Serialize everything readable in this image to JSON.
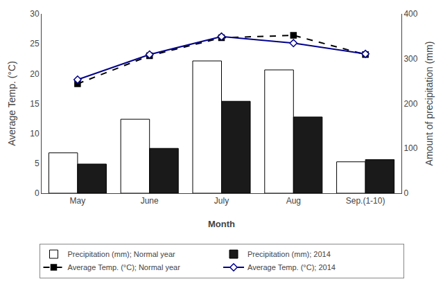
{
  "chart_data": {
    "type": "bar",
    "categories": [
      "May",
      "June",
      "July",
      "Aug",
      "Sep.(1-10)"
    ],
    "xlabel": "Month",
    "ylabel": "Average Temp. (°C)",
    "y2label": "Amount of precipitation (mm)",
    "ylim": [
      0.0,
      30.0
    ],
    "yticks": [
      0,
      5,
      10,
      15,
      20,
      25,
      30
    ],
    "y2lim": [
      0.0,
      400.0
    ],
    "y2ticks": [
      0,
      100,
      200,
      300,
      400
    ],
    "grid": false,
    "legend": "bottom",
    "series": [
      {
        "name": "Precipitation (mm); Normal year",
        "type": "bar",
        "axis": "y2",
        "color": "#ffffff",
        "values": [
          90,
          165,
          295,
          275,
          70
        ]
      },
      {
        "name": "Precipitation (mm); 2014",
        "type": "bar",
        "axis": "y2",
        "color": "#1a1a1a",
        "values": [
          65,
          100,
          205,
          170,
          75
        ]
      },
      {
        "name": "Average Temp. (°C); Normal year",
        "type": "line",
        "axis": "y",
        "color": "#000000",
        "line_style": "dashed",
        "marker": "square",
        "values": [
          18.3,
          23.0,
          26.0,
          26.4,
          23.2
        ]
      },
      {
        "name": "Average Temp. (°C); 2014",
        "type": "line",
        "axis": "y",
        "color": "#00008B",
        "line_style": "solid",
        "marker": "diamond",
        "values": [
          19.0,
          23.2,
          26.2,
          25.1,
          23.3
        ]
      }
    ]
  }
}
